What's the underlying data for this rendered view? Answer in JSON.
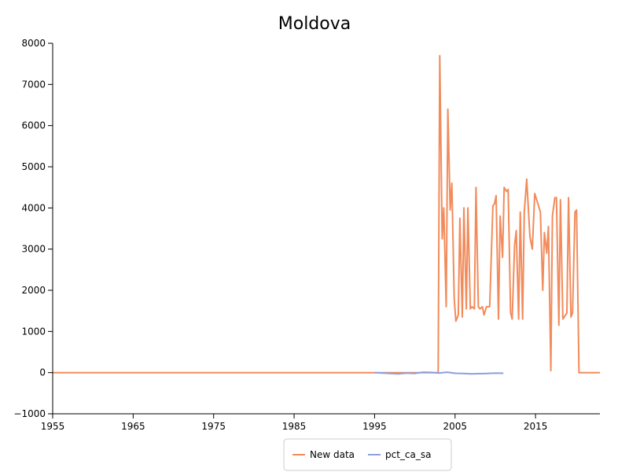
{
  "chart_data": {
    "type": "line",
    "title": "Moldova",
    "xlabel": "",
    "ylabel": "",
    "xlim": [
      1955,
      2023
    ],
    "ylim": [
      -1000,
      8000
    ],
    "x_ticks": [
      1955,
      1965,
      1975,
      1985,
      1995,
      2005,
      2015
    ],
    "x_tick_labels": [
      "1955",
      "1965",
      "1975",
      "1985",
      "1995",
      "2005",
      "2015"
    ],
    "y_ticks": [
      -1000,
      0,
      1000,
      2000,
      3000,
      4000,
      5000,
      6000,
      7000,
      8000
    ],
    "y_tick_labels": [
      "−1000",
      "0",
      "1000",
      "2000",
      "3000",
      "4000",
      "5000",
      "6000",
      "7000",
      "8000"
    ],
    "grid": false,
    "legend_position": "bottom-center",
    "series": [
      {
        "name": "New data",
        "color": "#f28b5b",
        "x": [
          1955,
          2002.9,
          2003.1,
          2003.4,
          2003.6,
          2003.9,
          2004.1,
          2004.4,
          2004.6,
          2004.9,
          2005.1,
          2005.4,
          2005.6,
          2005.9,
          2006.1,
          2006.4,
          2006.6,
          2006.9,
          2007.1,
          2007.4,
          2007.6,
          2007.9,
          2008.1,
          2008.4,
          2008.6,
          2008.9,
          2009.3,
          2009.7,
          2009.9,
          2010.1,
          2010.4,
          2010.6,
          2010.9,
          2011.1,
          2011.4,
          2011.6,
          2011.9,
          2012.1,
          2012.4,
          2012.6,
          2012.9,
          2013.1,
          2013.4,
          2013.6,
          2013.9,
          2014.3,
          2014.6,
          2014.9,
          2015.3,
          2015.6,
          2015.9,
          2016.1,
          2016.4,
          2016.6,
          2016.9,
          2017.1,
          2017.4,
          2017.6,
          2017.9,
          2018.1,
          2018.4,
          2018.9,
          2019.1,
          2019.4,
          2019.6,
          2019.9,
          2020.1,
          2020.4,
          2023
        ],
        "values": [
          0,
          0,
          7700,
          3250,
          4000,
          1600,
          6400,
          3950,
          4600,
          1800,
          1250,
          1400,
          3750,
          1350,
          4000,
          1550,
          4000,
          1550,
          1600,
          1550,
          4500,
          1600,
          1550,
          1600,
          1400,
          1600,
          1600,
          4050,
          4100,
          4300,
          1300,
          3800,
          2800,
          4500,
          4400,
          4450,
          1450,
          1300,
          3100,
          3450,
          1300,
          3900,
          1300,
          3900,
          4700,
          3300,
          3000,
          4350,
          4100,
          3900,
          2000,
          3400,
          2900,
          3550,
          50,
          3800,
          4250,
          4250,
          1150,
          4200,
          1300,
          1450,
          4250,
          1350,
          1450,
          3900,
          3950,
          0,
          0
        ]
      },
      {
        "name": "pct_ca_sa",
        "color": "#8da0e0",
        "x": [
          1995,
          1996,
          1997,
          1998,
          1999,
          2000,
          2001,
          2002,
          2003,
          2004,
          2005,
          2006,
          2007,
          2008,
          2009,
          2010,
          2011
        ],
        "values": [
          0,
          -10,
          -20,
          -30,
          -10,
          -20,
          10,
          5,
          -10,
          10,
          -15,
          -20,
          -30,
          -25,
          -20,
          -10,
          -15
        ]
      }
    ]
  }
}
